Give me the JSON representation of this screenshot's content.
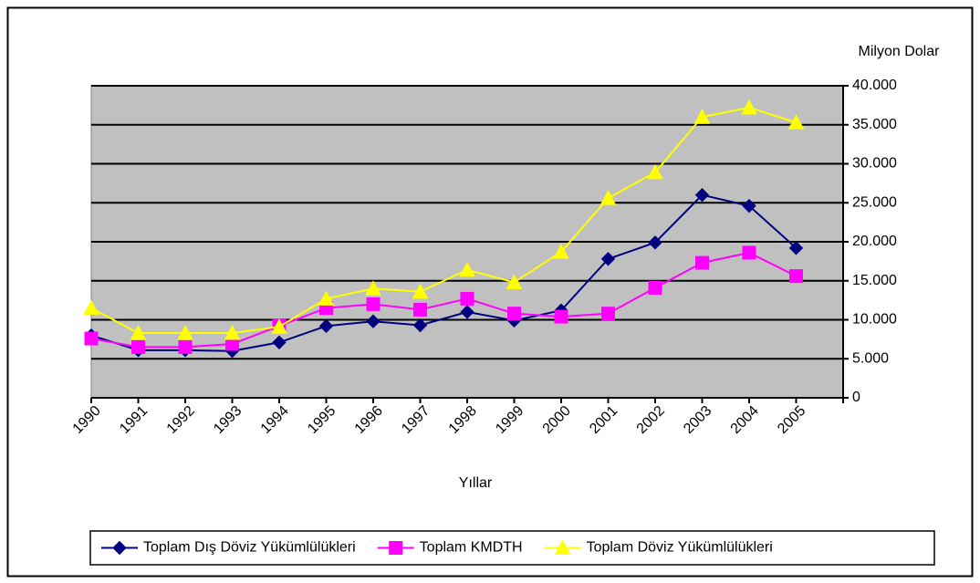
{
  "chart_data": {
    "type": "line",
    "y_unit_label": "Milyon Dolar",
    "x_label": "Yıllar",
    "categories": [
      "1990",
      "1991",
      "1992",
      "1993",
      "1994",
      "1995",
      "1996",
      "1997",
      "1998",
      "1999",
      "2000",
      "2001",
      "2002",
      "2003",
      "2004",
      "2005"
    ],
    "series": [
      {
        "name": "Toplam Dış Döviz Yükümlülükleri",
        "color": "#000080",
        "marker": "diamond",
        "values": [
          8000,
          6100,
          6100,
          6000,
          7100,
          9200,
          9800,
          9300,
          11000,
          9900,
          11200,
          17800,
          19900,
          26000,
          24600,
          19200
        ]
      },
      {
        "name": "Toplam KMDTH",
        "color": "#ff00ff",
        "marker": "square",
        "values": [
          7600,
          6500,
          6500,
          6900,
          9200,
          11500,
          12000,
          11300,
          12700,
          10800,
          10400,
          10800,
          14100,
          17300,
          18600,
          15600
        ]
      },
      {
        "name": "Toplam Döviz Yükümlülükleri",
        "color": "#ffff00",
        "marker": "triangle",
        "values": [
          11500,
          8300,
          8300,
          8300,
          9100,
          12700,
          14000,
          13600,
          16400,
          14800,
          18700,
          25600,
          28900,
          36000,
          37200,
          35300
        ]
      }
    ],
    "ylim": [
      0,
      40000
    ],
    "yticks": [
      0,
      {
        "value": 5000,
        "label": "5.000"
      },
      {
        "value": 10000,
        "label": "10.000"
      },
      {
        "value": 15000,
        "label": "15.000"
      },
      {
        "value": 20000,
        "label": "20.000"
      },
      {
        "value": 25000,
        "label": "25.000"
      },
      {
        "value": 30000,
        "label": "30.000"
      },
      {
        "value": 35000,
        "label": "35.000"
      },
      {
        "value": 40000,
        "label": "40.000"
      }
    ],
    "grid": true,
    "plot_background": "#c0c0c0",
    "legend": "bottom"
  }
}
